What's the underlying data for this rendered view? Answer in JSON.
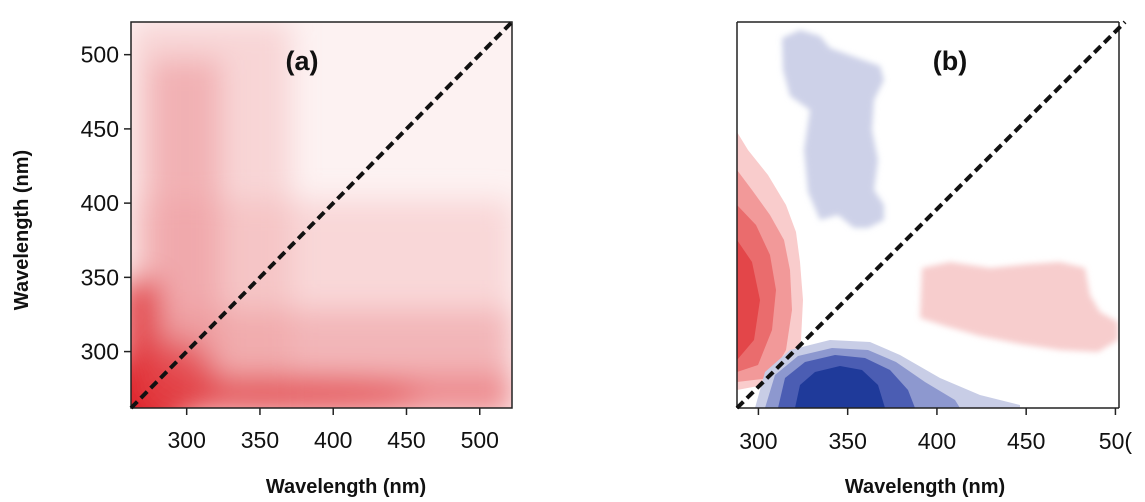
{
  "chart_data": [
    {
      "type": "heatmap",
      "panel_label": "(a)",
      "xlabel": "Wavelength (nm)",
      "ylabel": "Wavelength (nm)",
      "xlim": [
        262,
        522
      ],
      "ylim": [
        262,
        522
      ],
      "x_ticks": [
        "300",
        "350",
        "400",
        "450",
        "500"
      ],
      "y_ticks": [
        "300",
        "350",
        "400",
        "450",
        "500"
      ],
      "diagonal": "dashed black line y = x",
      "colormap": [
        "#ffffff",
        "#e0202a"
      ],
      "description_values": "intensity highest near (270, 270), strong bands along x≈270–320 and y≈265–310, fading toward upper right"
    },
    {
      "type": "heatmap",
      "panel_label": "(b)",
      "xlabel": "Wavelength (nm)",
      "ylabel": "",
      "xlim": [
        288,
        502
      ],
      "ylim": [
        262,
        522
      ],
      "x_ticks": [
        "300",
        "350",
        "400",
        "450",
        "50("
      ],
      "y_ticks": [],
      "diagonal": "dashed black line y = x",
      "colormap": [
        "#1e3c9e",
        "#ffffff",
        "#e23a3a"
      ],
      "regions": [
        {
          "sign": "positive",
          "color": "#e23a3a",
          "x": [
            288,
            325
          ],
          "y": [
            265,
            440
          ]
        },
        {
          "sign": "negative",
          "color": "#1e3c9e",
          "x": [
            305,
            440
          ],
          "y": [
            265,
            305
          ]
        },
        {
          "sign": "negative_weak",
          "color": "#c9cde6",
          "x": [
            313,
            368
          ],
          "y": [
            385,
            520
          ]
        },
        {
          "sign": "positive_weak",
          "color": "#f6c8c8",
          "x": [
            388,
            500
          ],
          "y": [
            300,
            365
          ]
        }
      ]
    }
  ]
}
